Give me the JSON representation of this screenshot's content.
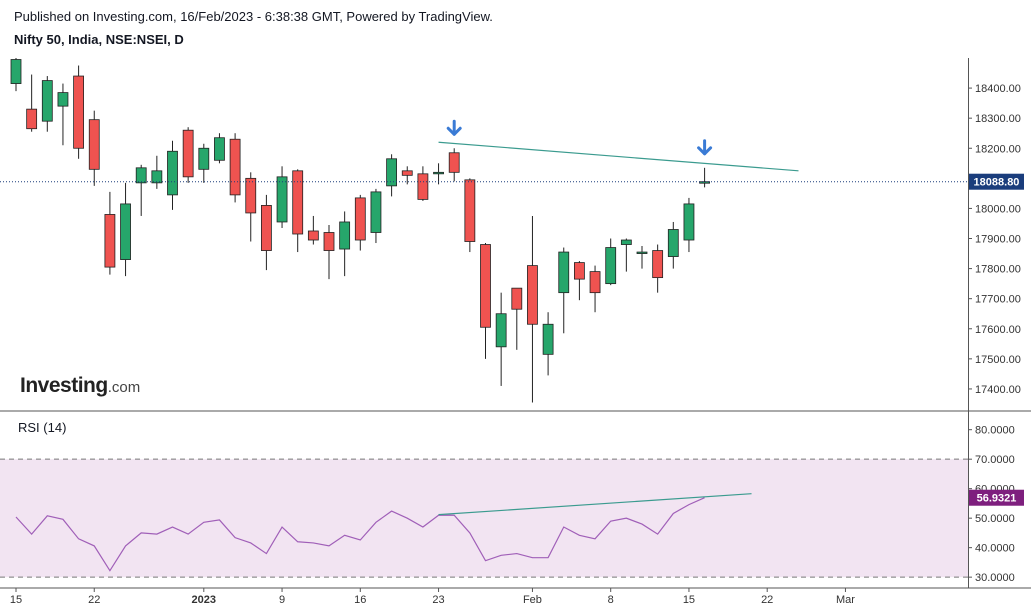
{
  "header": {
    "line1": "Published on Investing.com, 16/Feb/2023 - 6:38:38 GMT, Powered by TradingView.",
    "line2": "Nifty 50, India, NSE:NSEI, D"
  },
  "logo": {
    "brand": "Investing",
    "suffix": ".com"
  },
  "rsi_label": "RSI (14)",
  "colors": {
    "up": "#26a66b",
    "down": "#ef5350",
    "rsi_line": "#a05fb8",
    "rsi_band": "#f2e4f2",
    "trend": "#3b9b8f",
    "arrow": "#3a7bd5",
    "price_tag": "#1a3d7c",
    "rsi_tag": "#7e1f7e"
  },
  "chart_data": [
    {
      "type": "candlestick",
      "name": "Nifty 50, India, NSE:NSEI, D",
      "ylim": [
        17330,
        18500
      ],
      "yticks": [
        {
          "v": 17400,
          "label": "17400.00"
        },
        {
          "v": 17500,
          "label": "17500.00"
        },
        {
          "v": 17600,
          "label": "17600.00"
        },
        {
          "v": 17700,
          "label": "17700.00"
        },
        {
          "v": 17800,
          "label": "17800.00"
        },
        {
          "v": 17900,
          "label": "17900.00"
        },
        {
          "v": 18000,
          "label": "18000.00"
        },
        {
          "v": 18100,
          "label": "18100.00"
        },
        {
          "v": 18200,
          "label": "18200.00"
        },
        {
          "v": 18300,
          "label": "18300.00"
        },
        {
          "v": 18400,
          "label": "18400.00"
        }
      ],
      "last_price": {
        "v": 18088.8,
        "label": "18088.80"
      },
      "xticks": [
        {
          "label": "15",
          "date": "2022-12-15",
          "bold": false
        },
        {
          "label": "22",
          "date": "2022-12-22",
          "bold": false
        },
        {
          "label": "2023",
          "date": "2023-01-02",
          "bold": true
        },
        {
          "label": "9",
          "date": "2023-01-09",
          "bold": false
        },
        {
          "label": "16",
          "date": "2023-01-16",
          "bold": false
        },
        {
          "label": "23",
          "date": "2023-01-23",
          "bold": false
        },
        {
          "label": "Feb",
          "date": "2023-02-01",
          "bold": false
        },
        {
          "label": "8",
          "date": "2023-02-08",
          "bold": false
        },
        {
          "label": "15",
          "date": "2023-02-15",
          "bold": false
        },
        {
          "label": "22",
          "date": "2023-02-22",
          "bold": false
        },
        {
          "label": "Mar",
          "date": "2023-03-01",
          "bold": false
        }
      ],
      "candles": [
        {
          "d": "2022-12-15",
          "o": 18415,
          "h": 18500,
          "l": 18390,
          "c": 18495
        },
        {
          "d": "2022-12-16",
          "o": 18330,
          "h": 18445,
          "l": 18255,
          "c": 18265
        },
        {
          "d": "2022-12-19",
          "o": 18290,
          "h": 18440,
          "l": 18255,
          "c": 18425
        },
        {
          "d": "2022-12-20",
          "o": 18340,
          "h": 18415,
          "l": 18210,
          "c": 18385
        },
        {
          "d": "2022-12-21",
          "o": 18440,
          "h": 18475,
          "l": 18165,
          "c": 18200
        },
        {
          "d": "2022-12-22",
          "o": 18295,
          "h": 18325,
          "l": 18075,
          "c": 18130
        },
        {
          "d": "2022-12-23",
          "o": 17980,
          "h": 18055,
          "l": 17780,
          "c": 17805
        },
        {
          "d": "2022-12-26",
          "o": 17830,
          "h": 18085,
          "l": 17775,
          "c": 18015
        },
        {
          "d": "2022-12-27",
          "o": 18085,
          "h": 18145,
          "l": 17975,
          "c": 18135
        },
        {
          "d": "2022-12-28",
          "o": 18085,
          "h": 18175,
          "l": 18065,
          "c": 18125
        },
        {
          "d": "2022-12-29",
          "o": 18045,
          "h": 18225,
          "l": 17995,
          "c": 18190
        },
        {
          "d": "2022-12-30",
          "o": 18260,
          "h": 18270,
          "l": 18085,
          "c": 18105
        },
        {
          "d": "2023-01-02",
          "o": 18130,
          "h": 18215,
          "l": 18085,
          "c": 18200
        },
        {
          "d": "2023-01-03",
          "o": 18160,
          "h": 18250,
          "l": 18150,
          "c": 18235
        },
        {
          "d": "2023-01-04",
          "o": 18230,
          "h": 18250,
          "l": 18020,
          "c": 18045
        },
        {
          "d": "2023-01-05",
          "o": 18100,
          "h": 18120,
          "l": 17890,
          "c": 17985
        },
        {
          "d": "2023-01-06",
          "o": 18010,
          "h": 18045,
          "l": 17795,
          "c": 17860
        },
        {
          "d": "2023-01-09",
          "o": 17955,
          "h": 18140,
          "l": 17935,
          "c": 18105
        },
        {
          "d": "2023-01-10",
          "o": 18125,
          "h": 18130,
          "l": 17855,
          "c": 17915
        },
        {
          "d": "2023-01-11",
          "o": 17925,
          "h": 17975,
          "l": 17880,
          "c": 17895
        },
        {
          "d": "2023-01-12",
          "o": 17920,
          "h": 17945,
          "l": 17765,
          "c": 17860
        },
        {
          "d": "2023-01-13",
          "o": 17865,
          "h": 17990,
          "l": 17775,
          "c": 17955
        },
        {
          "d": "2023-01-16",
          "o": 18035,
          "h": 18045,
          "l": 17860,
          "c": 17895
        },
        {
          "d": "2023-01-17",
          "o": 17920,
          "h": 18065,
          "l": 17885,
          "c": 18055
        },
        {
          "d": "2023-01-18",
          "o": 18075,
          "h": 18180,
          "l": 18040,
          "c": 18165
        },
        {
          "d": "2023-01-19",
          "o": 18125,
          "h": 18140,
          "l": 18080,
          "c": 18110
        },
        {
          "d": "2023-01-20",
          "o": 18115,
          "h": 18140,
          "l": 18025,
          "c": 18030
        },
        {
          "d": "2023-01-23",
          "o": 18120,
          "h": 18150,
          "l": 18080,
          "c": 18120
        },
        {
          "d": "2023-01-24",
          "o": 18185,
          "h": 18200,
          "l": 18090,
          "c": 18120
        },
        {
          "d": "2023-01-25",
          "o": 18095,
          "h": 18100,
          "l": 17855,
          "c": 17890
        },
        {
          "d": "2023-01-27",
          "o": 17880,
          "h": 17885,
          "l": 17500,
          "c": 17605
        },
        {
          "d": "2023-01-30",
          "o": 17540,
          "h": 17720,
          "l": 17410,
          "c": 17650
        },
        {
          "d": "2023-01-31",
          "o": 17735,
          "h": 17735,
          "l": 17530,
          "c": 17665
        },
        {
          "d": "2023-02-01",
          "o": 17810,
          "h": 17975,
          "l": 17355,
          "c": 17615
        },
        {
          "d": "2023-02-02",
          "o": 17515,
          "h": 17655,
          "l": 17445,
          "c": 17615
        },
        {
          "d": "2023-02-03",
          "o": 17720,
          "h": 17870,
          "l": 17585,
          "c": 17855
        },
        {
          "d": "2023-02-06",
          "o": 17820,
          "h": 17825,
          "l": 17695,
          "c": 17765
        },
        {
          "d": "2023-02-07",
          "o": 17790,
          "h": 17810,
          "l": 17655,
          "c": 17720
        },
        {
          "d": "2023-02-08",
          "o": 17750,
          "h": 17900,
          "l": 17745,
          "c": 17870
        },
        {
          "d": "2023-02-09",
          "o": 17880,
          "h": 17900,
          "l": 17790,
          "c": 17895
        },
        {
          "d": "2023-02-10",
          "o": 17850,
          "h": 17875,
          "l": 17800,
          "c": 17855
        },
        {
          "d": "2023-02-13",
          "o": 17860,
          "h": 17880,
          "l": 17720,
          "c": 17770
        },
        {
          "d": "2023-02-14",
          "o": 17840,
          "h": 17955,
          "l": 17800,
          "c": 17930
        },
        {
          "d": "2023-02-15",
          "o": 17895,
          "h": 18035,
          "l": 17855,
          "c": 18015
        },
        {
          "d": "2023-02-16",
          "o": 18085,
          "h": 18135,
          "l": 18070,
          "c": 18088.8
        }
      ],
      "trendline": {
        "from": {
          "d": "2023-01-23",
          "v": 18220
        },
        "to": {
          "d": "2023-02-25",
          "v": 18125
        }
      },
      "arrows": [
        "2023-01-24",
        "2023-02-16"
      ]
    },
    {
      "type": "line",
      "name": "RSI (14)",
      "ylim": [
        27,
        86
      ],
      "yticks": [
        {
          "v": 30,
          "label": "30.0000"
        },
        {
          "v": 40,
          "label": "40.0000"
        },
        {
          "v": 50,
          "label": "50.0000"
        },
        {
          "v": 60,
          "label": "60.0000"
        },
        {
          "v": 70,
          "label": "70.0000"
        },
        {
          "v": 80,
          "label": "80.0000"
        }
      ],
      "band": [
        30,
        70
      ],
      "last_value": {
        "v": 56.9321,
        "label": "56.9321"
      },
      "values": [
        50.4,
        44.6,
        50.8,
        49.6,
        43.0,
        40.6,
        32.2,
        40.6,
        45.0,
        44.6,
        47.0,
        44.6,
        48.6,
        49.4,
        43.4,
        41.6,
        38.0,
        47.0,
        42.0,
        41.6,
        40.6,
        44.2,
        42.6,
        48.6,
        52.4,
        50.0,
        47.0,
        51.0,
        51.0,
        45.0,
        35.6,
        37.4,
        38.0,
        36.6,
        36.6,
        47.0,
        44.2,
        43.0,
        49.0,
        50.0,
        48.0,
        44.6,
        51.6,
        54.6,
        56.9321
      ],
      "trendline": {
        "from": {
          "d": "2023-01-23",
          "v": 51.2
        },
        "to": {
          "d": "2023-02-21",
          "v": 58.3
        }
      }
    }
  ]
}
